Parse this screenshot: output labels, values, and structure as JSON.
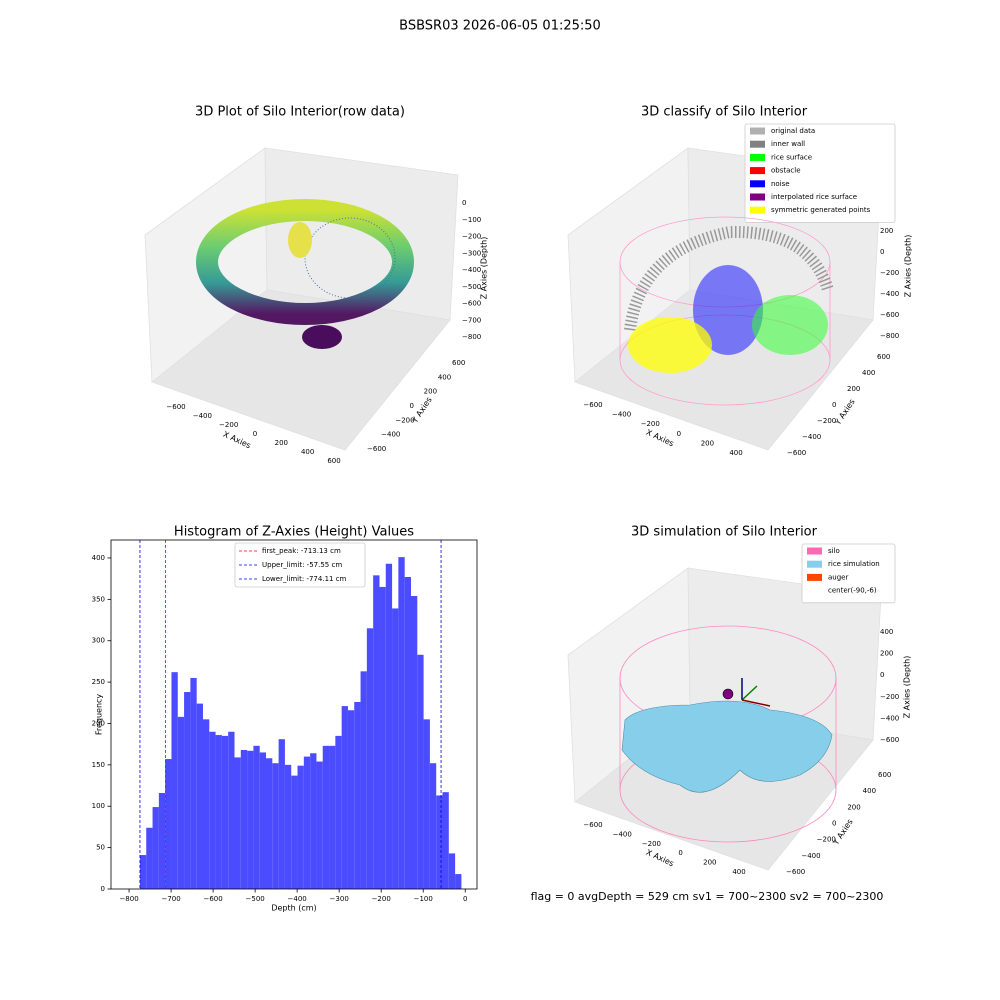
{
  "title": "BSBSR03 2026-06-05 01:25:50",
  "plots3d": [
    {
      "title": "3D Plot of Silo Interior(row data)",
      "xlabel": "X Axies",
      "ylabel": "Y Axies",
      "zlabel": "Z Axies (Depth)",
      "xticks": [
        "−600",
        "−400",
        "−200",
        "0",
        "200",
        "400",
        "600"
      ],
      "yticks": [
        "−600",
        "−400",
        "−200",
        "0",
        "200",
        "400",
        "600"
      ],
      "zticks": [
        "0",
        "−100",
        "−200",
        "−300",
        "−400",
        "−500",
        "−600",
        "−700",
        "−800"
      ]
    },
    {
      "title": "3D classify of Silo Interior",
      "xlabel": "X Axies",
      "ylabel": "Y Axies",
      "zlabel": "Z Axies (Depth)",
      "xticks": [
        "−600",
        "−400",
        "−200",
        "0",
        "200",
        "400"
      ],
      "yticks": [
        "−600",
        "−400",
        "−200",
        "0",
        "200",
        "400",
        "600"
      ],
      "zticks": [
        "200",
        "0",
        "−200",
        "−400",
        "−600",
        "−800"
      ],
      "legend": [
        {
          "name": "original data",
          "color": "#b0b0b0"
        },
        {
          "name": "inner wall",
          "color": "#808080"
        },
        {
          "name": "rice surface",
          "color": "#00ff00"
        },
        {
          "name": "obstacle",
          "color": "#ff0000"
        },
        {
          "name": "noise",
          "color": "#0000ff"
        },
        {
          "name": "interpolated rice surface",
          "color": "#800080"
        },
        {
          "name": "symmetric generated points",
          "color": "#ffff00"
        }
      ]
    },
    {
      "title": "3D simulation of Silo Interior",
      "xlabel": "X Axies",
      "ylabel": "Y Axies",
      "zlabel": "Z Axies (Depth)",
      "xticks": [
        "−600",
        "−400",
        "−200",
        "0",
        "200",
        "400"
      ],
      "yticks": [
        "−600",
        "−400",
        "−200",
        "0",
        "200",
        "400",
        "600"
      ],
      "zticks": [
        "400",
        "200",
        "0",
        "−200",
        "−400",
        "−600"
      ],
      "legend": [
        {
          "name": "silo",
          "color": "#ff69b4"
        },
        {
          "name": "rice simulation",
          "color": "#87ceeb"
        },
        {
          "name": "auger",
          "color": "#ff4500"
        },
        {
          "name": "center(-90,-6)",
          "color": "#ffffff"
        }
      ]
    }
  ],
  "chart_data": {
    "type": "histogram",
    "title": "Histogram of Z-Axies (Height) Values",
    "xlabel": "Depth (cm)",
    "ylabel": "Frequency",
    "color": "#4b4bff",
    "bins": [
      -774.1,
      -759.1,
      -744.1,
      -729.1,
      -714.1,
      -699.1,
      -684.1,
      -669.1,
      -654.1,
      -639.1,
      -624.1,
      -609.1,
      -594.1,
      -579.1,
      -564.1,
      -549.1,
      -534.1,
      -519.1,
      -504.1,
      -489.1,
      -474.1,
      -459.1,
      -444.1,
      -429.1,
      -414.1,
      -399.1,
      -384.1,
      -369.1,
      -354.1,
      -339.1,
      -324.1,
      -309.1,
      -294.1,
      -279.1,
      -264.1,
      -249.1,
      -234.1,
      -219.1,
      -204.1,
      -189.1,
      -174.1,
      -159.1,
      -144.1,
      -129.1,
      -114.1,
      -99.1,
      -84.1,
      -69.1,
      -54.1,
      -39.1,
      -24.1,
      -9.1
    ],
    "values": [
      41,
      74,
      99,
      116,
      157,
      262,
      208,
      238,
      255,
      224,
      205,
      190,
      186,
      185,
      190,
      159,
      168,
      167,
      173,
      165,
      158,
      152,
      181,
      150,
      137,
      149,
      160,
      164,
      154,
      173,
      173,
      185,
      221,
      216,
      226,
      263,
      315,
      379,
      365,
      393,
      339,
      401,
      377,
      354,
      283,
      205,
      152,
      113,
      117,
      43,
      18
    ],
    "lines": [
      {
        "name": "first_peak: -713.13 cm",
        "value": -713.13,
        "color": "#ff0000"
      },
      {
        "name": "Upper_limit: -57.55 cm",
        "value": -57.55,
        "color": "#0000ff"
      },
      {
        "name": "Lower_limit: -774.11 cm",
        "value": -774.11,
        "color": "#0000ff"
      }
    ],
    "xlim": [
      -843,
      28
    ],
    "ylim": [
      0,
      421.7
    ],
    "xticks": [
      {
        "value": -800,
        "label": "−800"
      },
      {
        "value": -700,
        "label": "−700"
      },
      {
        "value": -600,
        "label": "−600"
      },
      {
        "value": -500,
        "label": "−500"
      },
      {
        "value": -400,
        "label": "−400"
      },
      {
        "value": -300,
        "label": "−300"
      },
      {
        "value": -200,
        "label": "−200"
      },
      {
        "value": -100,
        "label": "−100"
      },
      0
    ],
    "yticks": [
      0,
      50,
      100,
      150,
      200,
      250,
      300,
      350,
      400
    ]
  },
  "status": "flag = 0     avgDepth = 529 cm  sv1 = 700~2300  sv2 = 700~2300"
}
